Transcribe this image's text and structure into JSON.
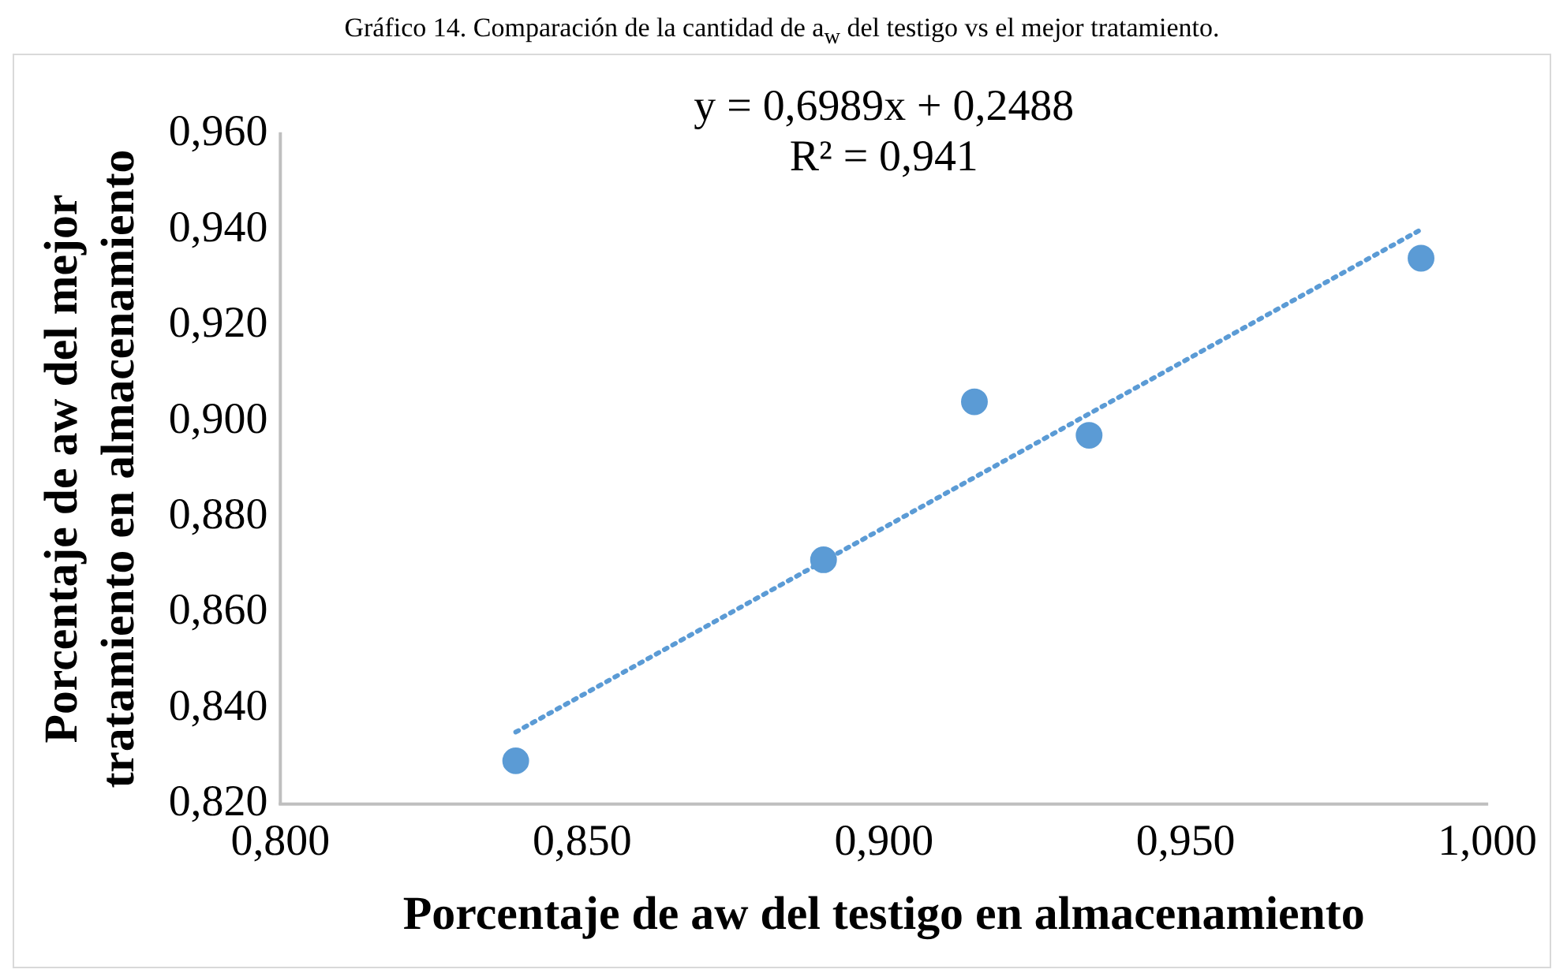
{
  "chart_data": {
    "type": "scatter",
    "title": "Gráfico 14. Comparación de la cantidad de a$_{w}$ del testigo vs el mejor tratamiento.",
    "xlabel": "Porcentaje de aw del testigo en almacenamiento",
    "ylabel": "Porcentaje de aw del mejor tratamiento en almacenamiento",
    "annotations": [
      "y = 0,6989x + 0,2488",
      "R² = 0,941"
    ],
    "series": [
      {
        "color": "#5b9bd5",
        "x": [
          0.839,
          0.89,
          0.915,
          0.934,
          0.989
        ],
        "values": [
          0.829,
          0.871,
          0.904,
          0.897,
          0.934
        ],
        "marker": "circle"
      },
      {
        "type": "line",
        "color": "#5b9bd5",
        "x": [
          0.839,
          0.989
        ],
        "values": [
          0.835,
          0.94
        ],
        "line_style": "dotted",
        "marker": "none"
      }
    ],
    "xlim": [
      0.8,
      1.0
    ],
    "xticks": [
      {
        "value": 0.8,
        "label": "0,800"
      },
      {
        "value": 0.85,
        "label": "0,850"
      },
      {
        "value": 0.9,
        "label": "0,900"
      },
      {
        "value": 0.95,
        "label": "0,950"
      },
      {
        "value": 1.0,
        "label": "1,000"
      }
    ],
    "ylim": [
      0.82,
      0.96
    ],
    "yticks": [
      {
        "value": 0.82,
        "label": "0,820"
      },
      {
        "value": 0.84,
        "label": "0,840"
      },
      {
        "value": 0.86,
        "label": "0,860"
      },
      {
        "value": 0.88,
        "label": "0,880"
      },
      {
        "value": 0.9,
        "label": "0,900"
      },
      {
        "value": 0.92,
        "label": "0,920"
      },
      {
        "value": 0.94,
        "label": "0,940"
      },
      {
        "value": 0.96,
        "label": "0,960"
      }
    ],
    "grid": false,
    "legend": false
  }
}
